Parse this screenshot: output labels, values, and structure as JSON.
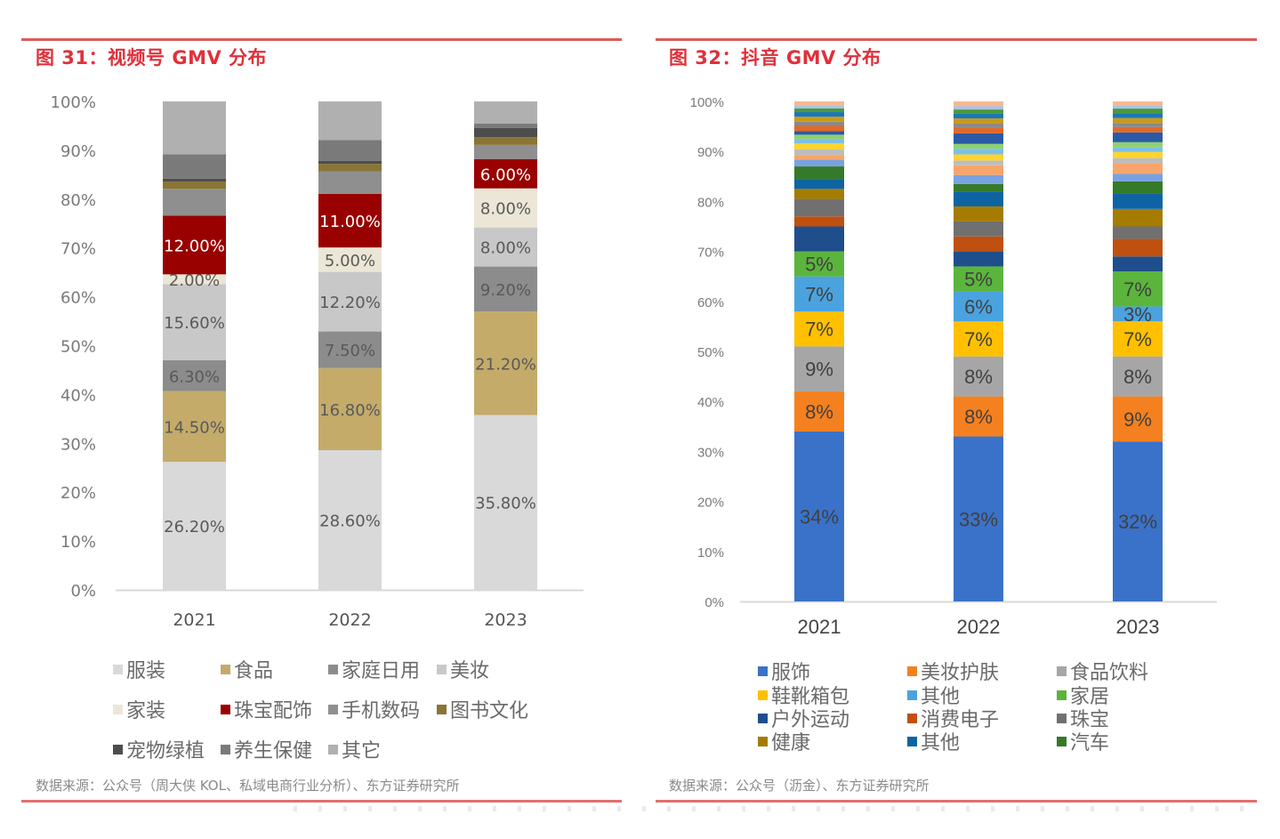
{
  "left": {
    "title": "图 31：视频号 GMV 分布",
    "source": "数据来源：公众号（周大侠 KOL、私域电商行业分析）、东方证券研究所"
  },
  "right": {
    "title": "图 32：抖音 GMV 分布",
    "source": "数据来源：公众号（沥金）、东方证券研究所"
  },
  "chart_data": [
    {
      "type": "bar",
      "stacked": true,
      "title": "图 31：视频号 GMV 分布",
      "xlabel": "",
      "ylabel": "",
      "ylim": [
        0,
        100
      ],
      "yticks": [
        "0%",
        "10%",
        "20%",
        "30%",
        "40%",
        "50%",
        "60%",
        "70%",
        "80%",
        "90%",
        "100%"
      ],
      "categories": [
        "2021",
        "2022",
        "2023"
      ],
      "grid": false,
      "legend_position": "bottom",
      "series": [
        {
          "name": "服装",
          "color": "#d9d9d9",
          "values": [
            26.2,
            28.6,
            35.8
          ],
          "labels": [
            "26.20%",
            "28.60%",
            "35.80%"
          ],
          "label_color": "#595959"
        },
        {
          "name": "食品",
          "color": "#c4ab6a",
          "values": [
            14.5,
            16.8,
            21.2
          ],
          "labels": [
            "14.50%",
            "16.80%",
            "21.20%"
          ],
          "label_color": "#595959"
        },
        {
          "name": "家庭日用",
          "color": "#8c8c8c",
          "values": [
            6.3,
            7.5,
            9.2
          ],
          "labels": [
            "6.30%",
            "7.50%",
            "9.20%"
          ],
          "label_color": "#595959"
        },
        {
          "name": "美妆",
          "color": "#c8c8c8",
          "values": [
            15.6,
            12.2,
            8.0
          ],
          "labels": [
            "15.60%",
            "12.20%",
            "8.00%"
          ],
          "label_color": "#595959"
        },
        {
          "name": "家装",
          "color": "#ebe6d6",
          "values": [
            2.0,
            5.0,
            8.0
          ],
          "labels": [
            "2.00%",
            "5.00%",
            "8.00%"
          ],
          "label_color": "#595959"
        },
        {
          "name": "珠宝配饰",
          "color": "#990000",
          "values": [
            12.0,
            11.0,
            6.0
          ],
          "labels": [
            "12.00%",
            "11.00%",
            "6.00%"
          ],
          "label_color": "#ffffff"
        },
        {
          "name": "手机数码",
          "color": "#8f8f8f",
          "values": [
            5.5,
            4.6,
            2.9
          ],
          "labels": [
            "",
            "",
            ""
          ],
          "label_color": "#595959"
        },
        {
          "name": "图书文化",
          "color": "#8a7535",
          "values": [
            1.5,
            1.5,
            1.6
          ],
          "labels": [
            "",
            "",
            ""
          ],
          "label_color": "#595959"
        },
        {
          "name": "宠物绿植",
          "color": "#4d4d4d",
          "values": [
            0.6,
            0.6,
            1.9
          ],
          "labels": [
            "",
            "",
            ""
          ],
          "label_color": "#595959"
        },
        {
          "name": "养生保健",
          "color": "#7a7a7a",
          "values": [
            5.0,
            4.3,
            0.9
          ],
          "labels": [
            "",
            "",
            ""
          ],
          "label_color": "#595959"
        },
        {
          "name": "其它",
          "color": "#b0b0b0",
          "values": [
            10.8,
            7.9,
            4.5
          ],
          "labels": [
            "",
            "",
            ""
          ],
          "label_color": "#595959"
        }
      ]
    },
    {
      "type": "bar",
      "stacked": true,
      "title": "图 32：抖音 GMV 分布",
      "xlabel": "",
      "ylabel": "",
      "ylim": [
        0,
        100
      ],
      "yticks": [
        "0%",
        "10%",
        "20%",
        "30%",
        "40%",
        "50%",
        "60%",
        "70%",
        "80%",
        "90%",
        "100%"
      ],
      "categories": [
        "2021",
        "2022",
        "2023"
      ],
      "grid": false,
      "legend_position": "bottom",
      "series": [
        {
          "name": "服饰",
          "color": "#3a72c9",
          "values": [
            34,
            33,
            32
          ],
          "labels": [
            "34%",
            "33%",
            "32%"
          ]
        },
        {
          "name": "美妆护肤",
          "color": "#f5801f",
          "values": [
            8,
            8,
            9
          ],
          "labels": [
            "8%",
            "8%",
            "9%"
          ]
        },
        {
          "name": "食品饮料",
          "color": "#a6a6a6",
          "values": [
            9,
            8,
            8
          ],
          "labels": [
            "9%",
            "8%",
            "8%"
          ]
        },
        {
          "name": "鞋靴箱包",
          "color": "#ffc000",
          "values": [
            7,
            7,
            7
          ],
          "labels": [
            "7%",
            "7%",
            "7%"
          ]
        },
        {
          "name": "其他",
          "color": "#4aa3df",
          "values": [
            7,
            6,
            3
          ],
          "labels": [
            "7%",
            "6%",
            "3%"
          ]
        },
        {
          "name": "家居",
          "color": "#5bb53c",
          "values": [
            5,
            5,
            7
          ],
          "labels": [
            "5%",
            "5%",
            "7%"
          ]
        },
        {
          "name": "户外运动",
          "color": "#1f4e8c",
          "values": [
            5,
            3,
            3
          ],
          "labels": [
            "",
            "",
            ""
          ]
        },
        {
          "name": "消费电子",
          "color": "#c0500f",
          "values": [
            2,
            3,
            3.5
          ],
          "labels": [
            "",
            "",
            ""
          ]
        },
        {
          "name": "珠宝",
          "color": "#707070",
          "values": [
            3.5,
            3,
            2.5
          ],
          "labels": [
            "",
            "",
            ""
          ]
        },
        {
          "name": "健康",
          "color": "#a57c00",
          "values": [
            2,
            3,
            3.5
          ],
          "labels": [
            "",
            "",
            ""
          ]
        },
        {
          "name": "其他",
          "color": "#0e64a3",
          "values": [
            2,
            3,
            3
          ],
          "labels": [
            "",
            "",
            ""
          ]
        },
        {
          "name": "汽车",
          "color": "#357a28",
          "values": [
            2.5,
            1.5,
            2.5
          ],
          "labels": [
            "",
            "",
            ""
          ]
        }
      ],
      "minor_bands_above": {
        "colors": [
          "#7aa2e0",
          "#f8a56b",
          "#bdbdbd",
          "#ffd42a",
          "#7cc0e8",
          "#8fd070",
          "#2a5aa6",
          "#e06a2a",
          "#8a8a8a",
          "#c99a1a",
          "#1a78b8",
          "#4a9a3a",
          "#a8c4ea",
          "#f5b891"
        ],
        "values_2021": [
          1.8,
          1.2,
          1.5,
          1.5,
          1.2,
          1.1,
          0.9,
          1.4,
          1.1,
          1.3,
          1.2,
          1.0,
          0.8,
          1.0
        ],
        "values_2022": [
          2.2,
          2.4,
          1.2,
          1.5,
          1.4,
          1.2,
          2.6,
          1.4,
          1.0,
          1.3,
          1.2,
          1.0,
          0.8,
          1.2
        ],
        "values_2023": [
          2.0,
          2.8,
          1.4,
          1.6,
          1.2,
          1.4,
          2.6,
          1.4,
          1.1,
          1.3,
          1.3,
          1.2,
          0.9,
          1.0
        ]
      }
    }
  ]
}
